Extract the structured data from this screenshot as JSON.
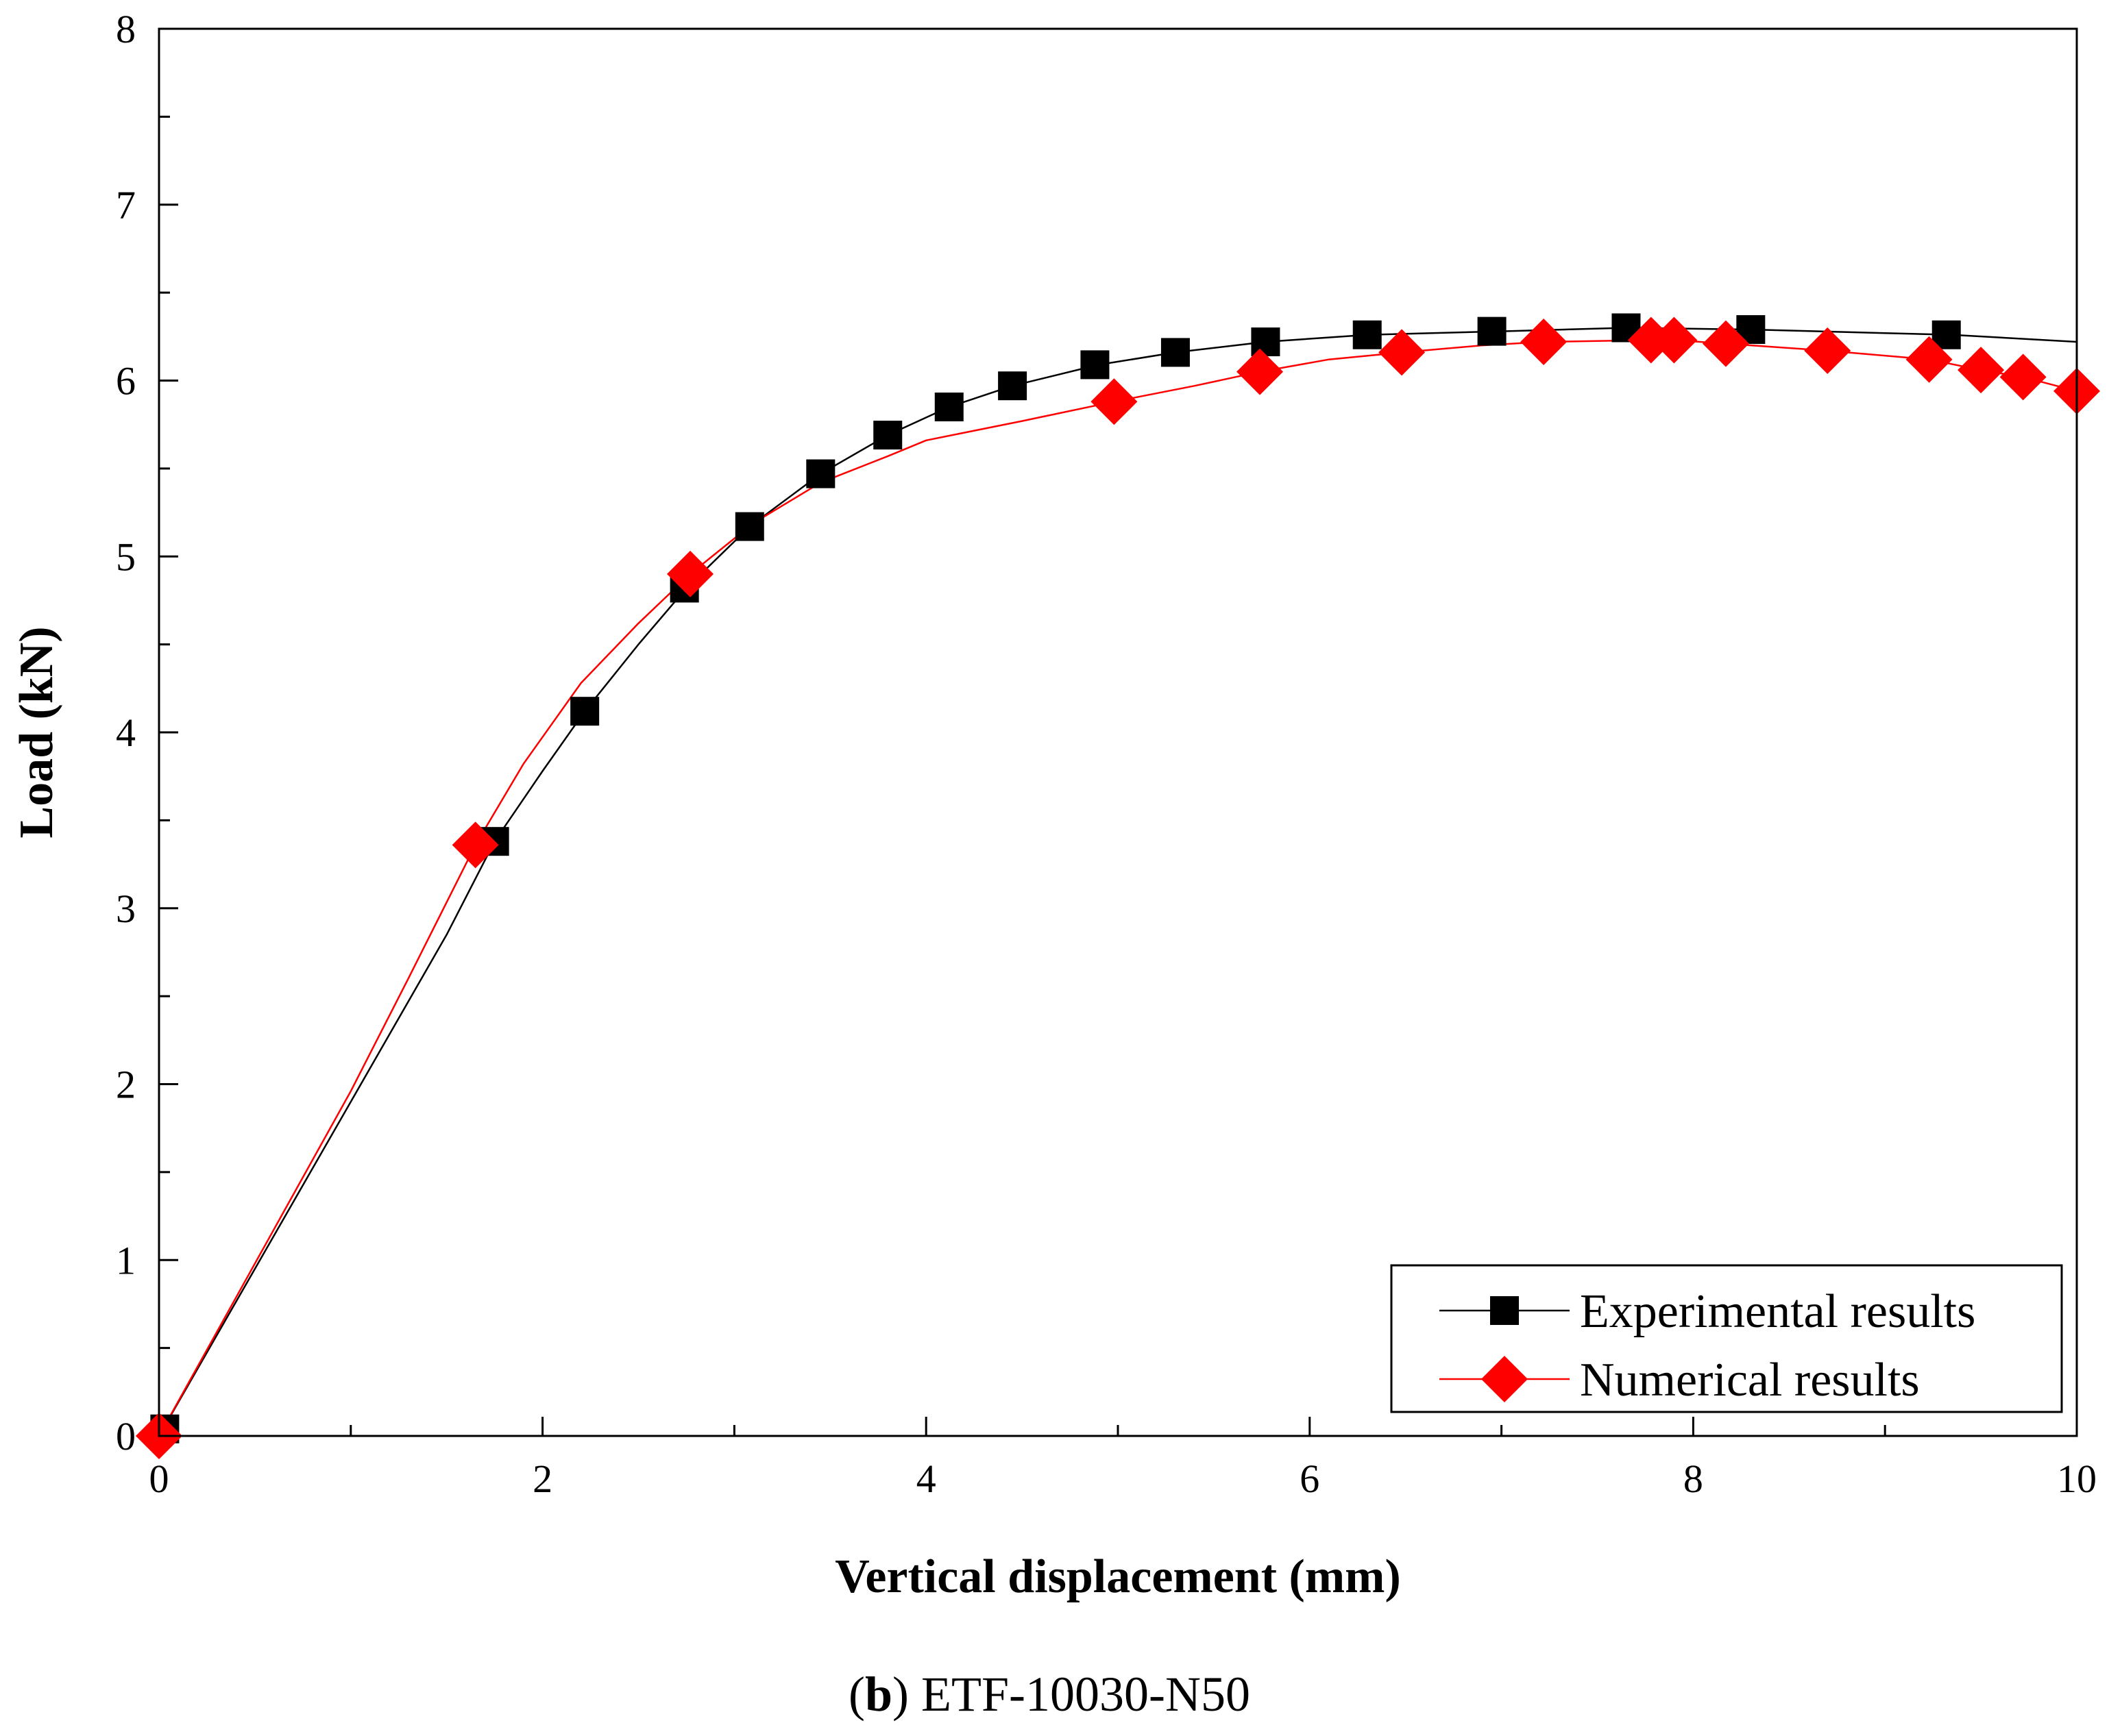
{
  "chart_data": {
    "type": "line",
    "title": "",
    "xlabel": "Vertical displacement (mm)",
    "ylabel": "Load (kN)",
    "xlim": [
      0,
      10
    ],
    "ylim": [
      0,
      8
    ],
    "x_ticks": [
      "0",
      "2",
      "4",
      "6",
      "8",
      "10"
    ],
    "y_ticks": [
      "0",
      "1",
      "2",
      "3",
      "4",
      "5",
      "6",
      "7",
      "8"
    ],
    "legend_position": "bottom-right",
    "grid": false,
    "series": [
      {
        "name": "Experimental results",
        "color": "#000000",
        "marker": "square",
        "line": [
          [
            0,
            0
          ],
          [
            0.5,
            0.95
          ],
          [
            1,
            1.9
          ],
          [
            1.5,
            2.85
          ],
          [
            1.75,
            3.38
          ],
          [
            2,
            3.78
          ],
          [
            2.22,
            4.12
          ],
          [
            2.5,
            4.5
          ],
          [
            2.75,
            4.82
          ],
          [
            3.08,
            5.17
          ],
          [
            3.45,
            5.47
          ],
          [
            3.8,
            5.69
          ],
          [
            4.12,
            5.85
          ],
          [
            4.45,
            5.97
          ],
          [
            4.9,
            6.09
          ],
          [
            5.3,
            6.16
          ],
          [
            5.77,
            6.22
          ],
          [
            6.3,
            6.26
          ],
          [
            7,
            6.28
          ],
          [
            7.65,
            6.3
          ],
          [
            8.3,
            6.29
          ],
          [
            9,
            6.27
          ],
          [
            9.35,
            6.26
          ],
          [
            10,
            6.22
          ]
        ],
        "points": [
          [
            0.03,
            0.04
          ],
          [
            1.75,
            3.38
          ],
          [
            2.22,
            4.12
          ],
          [
            2.74,
            4.82
          ],
          [
            3.08,
            5.17
          ],
          [
            3.45,
            5.47
          ],
          [
            3.8,
            5.69
          ],
          [
            4.12,
            5.85
          ],
          [
            4.45,
            5.97
          ],
          [
            4.88,
            6.09
          ],
          [
            5.3,
            6.16
          ],
          [
            5.77,
            6.22
          ],
          [
            6.3,
            6.26
          ],
          [
            6.95,
            6.28
          ],
          [
            7.65,
            6.3
          ],
          [
            8.3,
            6.29
          ],
          [
            9.32,
            6.26
          ]
        ]
      },
      {
        "name": "Numerical results",
        "color": "#ff0000",
        "marker": "diamond",
        "line": [
          [
            0,
            0
          ],
          [
            0.5,
            0.98
          ],
          [
            1,
            1.96
          ],
          [
            1.3,
            2.6
          ],
          [
            1.65,
            3.36
          ],
          [
            1.9,
            3.82
          ],
          [
            2.2,
            4.28
          ],
          [
            2.5,
            4.62
          ],
          [
            2.77,
            4.9
          ],
          [
            3.1,
            5.19
          ],
          [
            3.45,
            5.42
          ],
          [
            3.8,
            5.57
          ],
          [
            4,
            5.66
          ],
          [
            4.5,
            5.77
          ],
          [
            4.98,
            5.88
          ],
          [
            5.4,
            5.97
          ],
          [
            5.74,
            6.05
          ],
          [
            6.1,
            6.12
          ],
          [
            6.48,
            6.16
          ],
          [
            6.9,
            6.2
          ],
          [
            7.22,
            6.22
          ],
          [
            7.78,
            6.23
          ],
          [
            7.9,
            6.23
          ],
          [
            8.17,
            6.21
          ],
          [
            8.7,
            6.17
          ],
          [
            9.23,
            6.12
          ],
          [
            9.5,
            6.06
          ],
          [
            9.72,
            6.02
          ],
          [
            10,
            5.94
          ]
        ],
        "points": [
          [
            0,
            0
          ],
          [
            1.65,
            3.36
          ],
          [
            2.77,
            4.9
          ],
          [
            4.98,
            5.88
          ],
          [
            5.74,
            6.05
          ],
          [
            6.48,
            6.16
          ],
          [
            7.22,
            6.22
          ],
          [
            7.78,
            6.23
          ],
          [
            7.9,
            6.23
          ],
          [
            8.17,
            6.21
          ],
          [
            8.7,
            6.17
          ],
          [
            9.23,
            6.12
          ],
          [
            9.5,
            6.06
          ],
          [
            9.72,
            6.02
          ],
          [
            10.0,
            5.94
          ]
        ]
      }
    ]
  },
  "caption": {
    "open_paren": "(",
    "letter": "b",
    "rest": ") ETF-10030-N50"
  }
}
